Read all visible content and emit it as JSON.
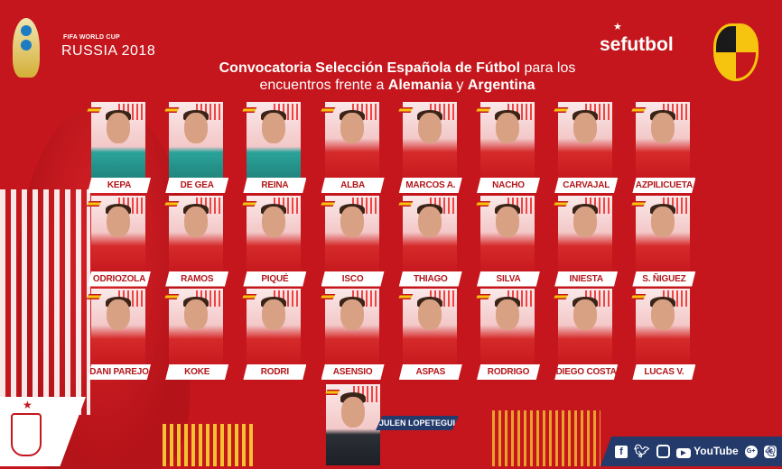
{
  "header": {
    "worldcup_small": "FIFA WORLD CUP",
    "worldcup_big": "RUSSIA 2018",
    "brand": "sefutbol",
    "title_line1_bold": "Convocatoria Selección Española de Fútbol",
    "title_line1_light": " para los",
    "title_line2_light1": "encuentros frente a ",
    "title_line2_bold1": "Alemania",
    "title_line2_light2": " y ",
    "title_line2_bold2": "Argentina",
    "rfef_logo": "RFEF"
  },
  "players": [
    {
      "name": "KEPA",
      "kit": "goalkeeper"
    },
    {
      "name": "DE GEA",
      "kit": "goalkeeper"
    },
    {
      "name": "REINA",
      "kit": "goalkeeper"
    },
    {
      "name": "ALBA",
      "kit": "field"
    },
    {
      "name": "MARCOS A.",
      "kit": "field"
    },
    {
      "name": "NACHO",
      "kit": "field"
    },
    {
      "name": "CARVAJAL",
      "kit": "field"
    },
    {
      "name": "AZPILICUETA",
      "kit": "field"
    },
    {
      "name": "ODRIOZOLA",
      "kit": "field"
    },
    {
      "name": "RAMOS",
      "kit": "field"
    },
    {
      "name": "PIQUÉ",
      "kit": "field"
    },
    {
      "name": "ISCO",
      "kit": "field"
    },
    {
      "name": "THIAGO",
      "kit": "field"
    },
    {
      "name": "SILVA",
      "kit": "field"
    },
    {
      "name": "INIESTA",
      "kit": "field"
    },
    {
      "name": "S. ÑIGUEZ",
      "kit": "field"
    },
    {
      "name": "DANI PAREJO",
      "kit": "field"
    },
    {
      "name": "KOKE",
      "kit": "field"
    },
    {
      "name": "RODRI",
      "kit": "field"
    },
    {
      "name": "ASENSIO",
      "kit": "field"
    },
    {
      "name": "ASPAS",
      "kit": "field"
    },
    {
      "name": "RODRIGO",
      "kit": "field"
    },
    {
      "name": "DIEGO COSTA",
      "kit": "field"
    },
    {
      "name": "LUCAS V.",
      "kit": "field"
    }
  ],
  "coach": {
    "name": "JULEN LOPETEGUI"
  },
  "social": {
    "icons": [
      "facebook-icon",
      "twitter-icon",
      "instagram-icon",
      "youtube-icon",
      "google-plus-icon",
      "snapchat-icon"
    ],
    "youtube_label": "YouTube",
    "facebook_glyph": "f",
    "google_glyph": "G+"
  },
  "colors": {
    "red": "#c4161c",
    "navy": "#233a6b",
    "yellow": "#f6c40e"
  }
}
